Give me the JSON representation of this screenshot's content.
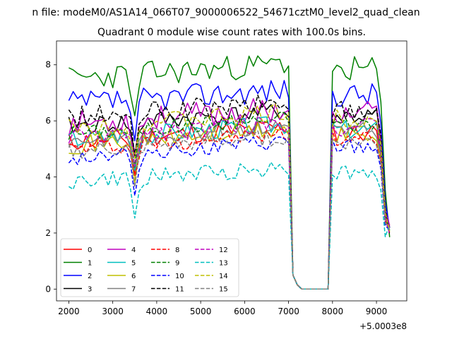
{
  "chart_data": {
    "type": "line",
    "suptitle": "n file: modeM0/AS1A14_066T07_9000006522_54671cztM0_level2_quad_clean",
    "title": "Quadrant 0 module wise count rates with 100.0s bins.",
    "xlabel": "",
    "ylabel": "",
    "x_offset_label": "+5.0003e8",
    "xlim": [
      1720,
      9690
    ],
    "ylim": [
      -0.42,
      8.85
    ],
    "xticks": [
      2000,
      3000,
      4000,
      5000,
      6000,
      7000,
      8000,
      9000
    ],
    "yticks": [
      0,
      2,
      4,
      6,
      8
    ],
    "x_start": 2000,
    "x_step": 100,
    "n_points": 74,
    "gap": {
      "drop_start_index": 51,
      "zero_start_index": 53,
      "zero_end_index": 58,
      "recover_index": 60
    },
    "legend": {
      "location": "lower-left",
      "columns": 4
    },
    "series": [
      {
        "name": "0",
        "color": "#ff0000",
        "dash": "solid",
        "level": 5.45,
        "amp": 0.35,
        "seed": 11
      },
      {
        "name": "1",
        "color": "#008000",
        "dash": "solid",
        "level": 7.7,
        "amp": 0.45,
        "seed": 23
      },
      {
        "name": "2",
        "color": "#0000ff",
        "dash": "solid",
        "level": 6.8,
        "amp": 0.45,
        "seed": 37
      },
      {
        "name": "3",
        "color": "#000000",
        "dash": "solid",
        "level": 6.0,
        "amp": 0.35,
        "seed": 41
      },
      {
        "name": "4",
        "color": "#bf00bf",
        "dash": "solid",
        "level": 6.1,
        "amp": 0.45,
        "seed": 53
      },
      {
        "name": "5",
        "color": "#00bfbf",
        "dash": "solid",
        "level": 5.55,
        "amp": 0.35,
        "seed": 67
      },
      {
        "name": "6",
        "color": "#bfbf00",
        "dash": "solid",
        "level": 5.35,
        "amp": 0.35,
        "seed": 71
      },
      {
        "name": "7",
        "color": "#808080",
        "dash": "solid",
        "level": 5.5,
        "amp": 0.3,
        "seed": 83
      },
      {
        "name": "8",
        "color": "#ff0000",
        "dash": "dashed",
        "level": 5.2,
        "amp": 0.3,
        "seed": 97
      },
      {
        "name": "9",
        "color": "#008000",
        "dash": "dashed",
        "level": 5.75,
        "amp": 0.3,
        "seed": 101
      },
      {
        "name": "10",
        "color": "#0000ff",
        "dash": "dashed",
        "level": 4.9,
        "amp": 0.3,
        "seed": 113
      },
      {
        "name": "11",
        "color": "#000000",
        "dash": "dashed",
        "level": 6.3,
        "amp": 0.4,
        "seed": 127
      },
      {
        "name": "12",
        "color": "#bf00bf",
        "dash": "dashed",
        "level": 5.6,
        "amp": 0.35,
        "seed": 131
      },
      {
        "name": "13",
        "color": "#00bfbf",
        "dash": "dashed",
        "level": 4.0,
        "amp": 0.3,
        "seed": 149
      },
      {
        "name": "14",
        "color": "#bfbf00",
        "dash": "dashed",
        "level": 5.95,
        "amp": 0.35,
        "seed": 151
      },
      {
        "name": "15",
        "color": "#808080",
        "dash": "dashed",
        "level": 5.1,
        "amp": 0.3,
        "seed": 163
      }
    ]
  }
}
